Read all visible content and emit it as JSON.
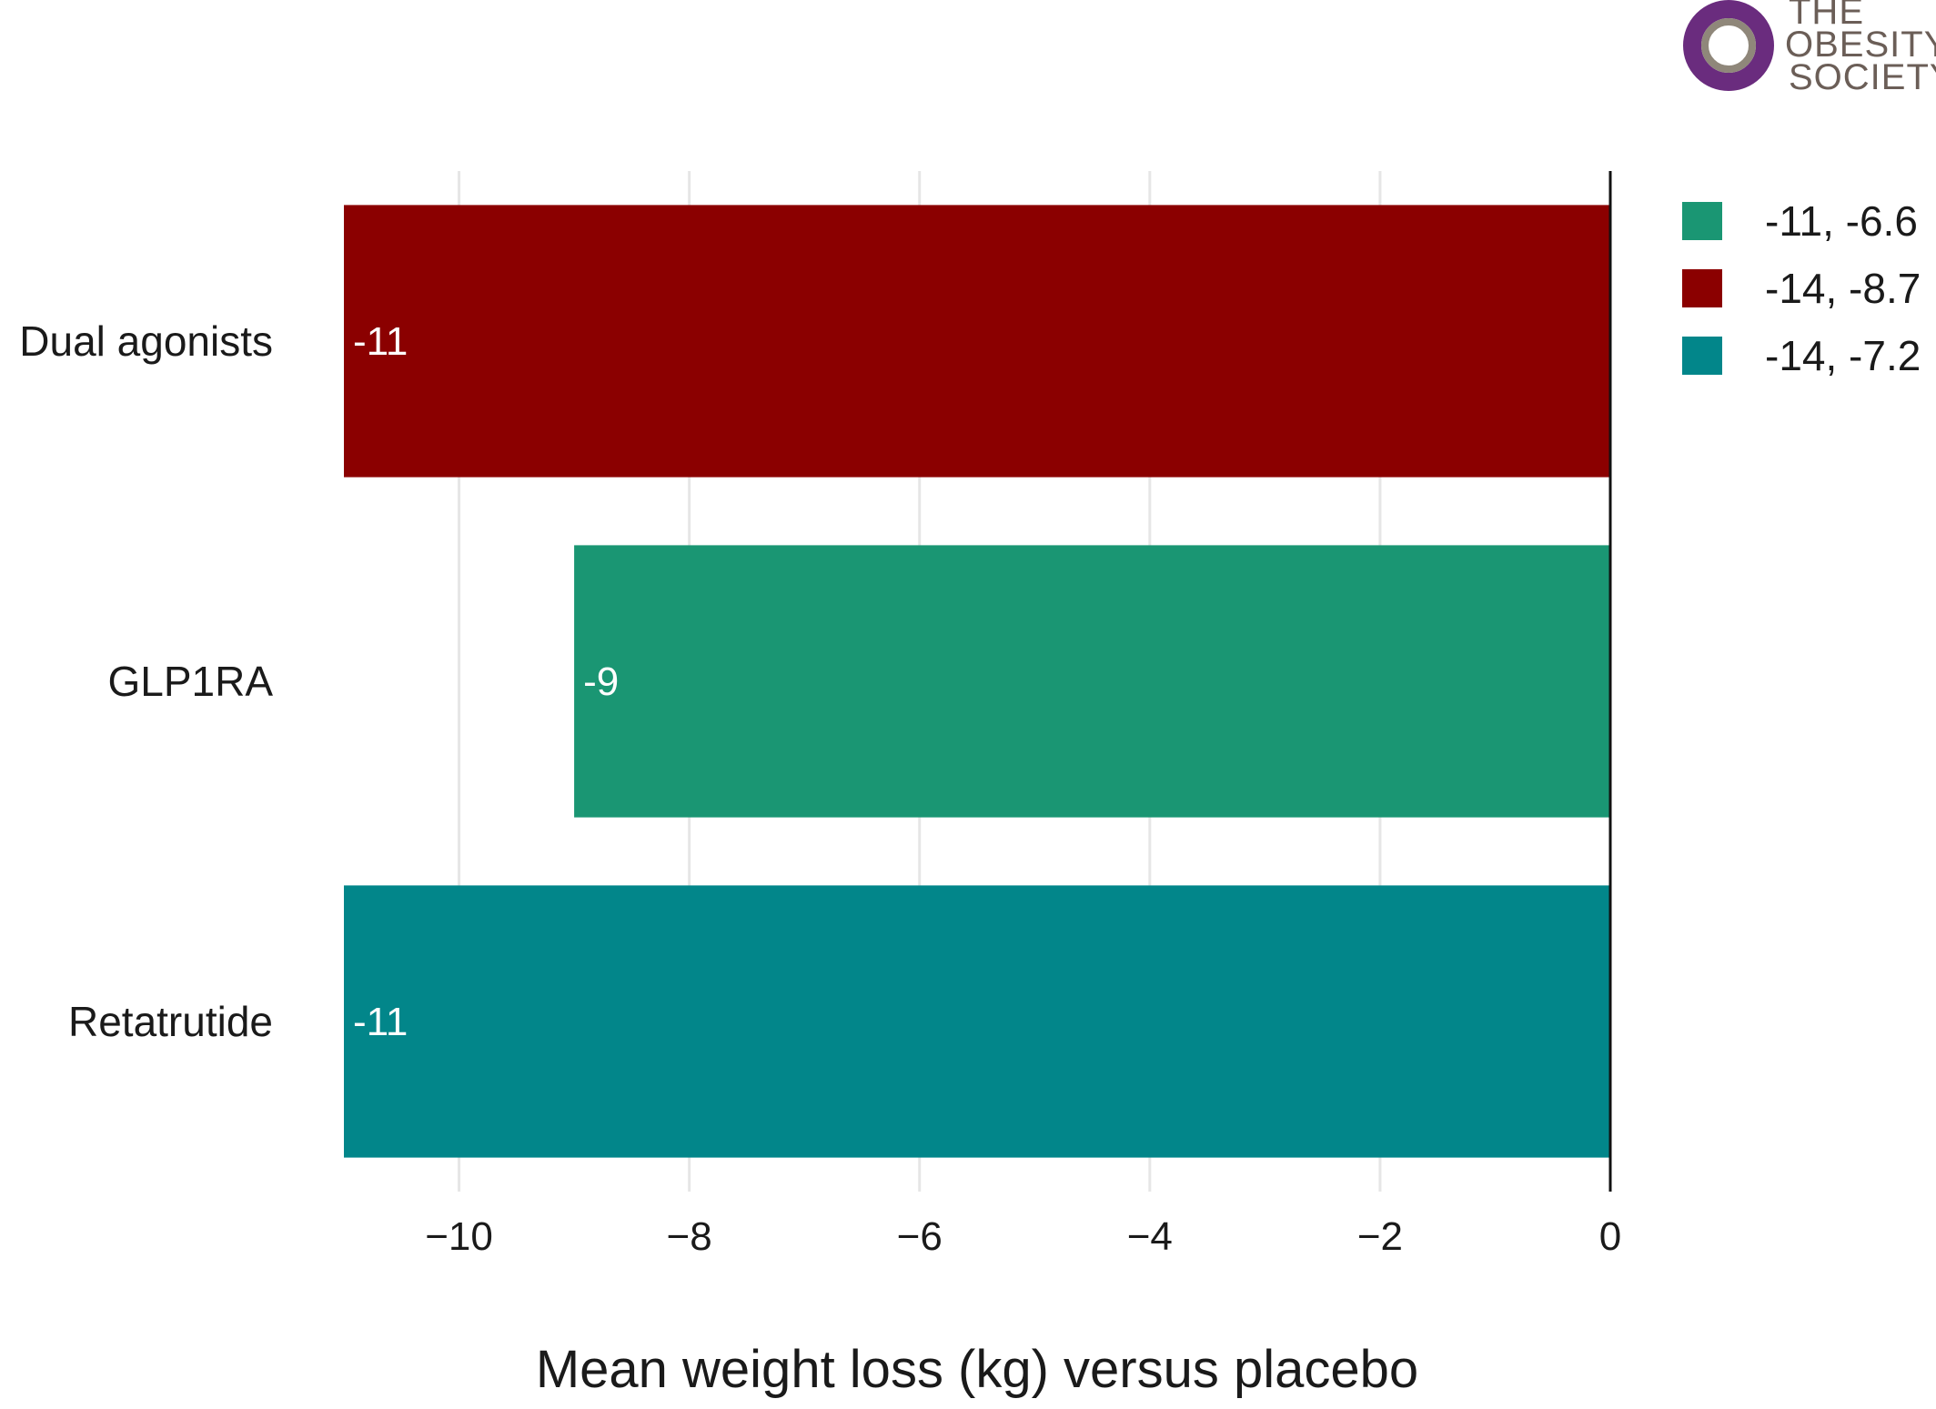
{
  "logo": {
    "lines": [
      "THE",
      "OBESITY",
      "SOCIETY"
    ],
    "ring_outer_color": "#6a2c7e",
    "ring_inner_color": "#8f877a"
  },
  "chart_data": {
    "type": "bar",
    "orientation": "horizontal",
    "categories": [
      "Dual agonists",
      "GLP1RA",
      "Retatrutide"
    ],
    "values": [
      -11,
      -9,
      -11
    ],
    "value_labels": [
      "-11",
      "-9",
      "-11"
    ],
    "colors": [
      "#8b0000",
      "#1a9673",
      "#02868a"
    ],
    "xlabel": "Mean weight loss (kg) versus placebo",
    "ylabel": "",
    "xlim": [
      -11,
      0
    ],
    "xticks": [
      -10,
      -8,
      -6,
      -4,
      -2,
      0
    ],
    "xtick_labels": [
      "−10",
      "−8",
      "−6",
      "−4",
      "−2",
      "0"
    ],
    "grid": true,
    "legend": {
      "placement": "right",
      "items": [
        {
          "label": "-11, -6.6",
          "color": "#1a9673"
        },
        {
          "label": "-14, -8.7",
          "color": "#8b0000"
        },
        {
          "label": "-14, -7.2",
          "color": "#02868a"
        }
      ]
    }
  }
}
